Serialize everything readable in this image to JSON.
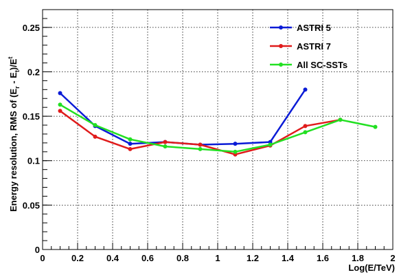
{
  "chart_data": {
    "type": "line",
    "title": "",
    "xlabel": "Log(E/TeV)",
    "ylabel": "Energy resolution, RMS of (E_r - E_t)/E_t",
    "ylabel_parts": {
      "main": "Energy resolution, RMS of (E",
      "sub1": "r",
      "mid": " - E",
      "sub2": "t",
      "close": ")/E",
      "sub3": "t"
    },
    "xlim": [
      0,
      2
    ],
    "ylim": [
      0,
      0.27
    ],
    "xticks": [
      "0",
      "0.2",
      "0.4",
      "0.6",
      "0.8",
      "1",
      "1.2",
      "1.4",
      "1.6",
      "1.8",
      "2"
    ],
    "yticks": [
      "0",
      "0.05",
      "0.1",
      "0.15",
      "0.2",
      "0.25"
    ],
    "grid": true,
    "legend_position": "top-right",
    "series": [
      {
        "name": "ASTRI 5",
        "color": "#0a1bd6",
        "x": [
          0.1,
          0.3,
          0.5,
          0.7,
          0.9,
          1.1,
          1.3,
          1.5
        ],
        "y": [
          0.176,
          0.139,
          0.119,
          0.121,
          0.118,
          0.119,
          0.121,
          0.18
        ]
      },
      {
        "name": "ASTRI 7",
        "color": "#e01b1b",
        "x": [
          0.1,
          0.3,
          0.5,
          0.7,
          0.9,
          1.1,
          1.3,
          1.5,
          1.7
        ],
        "y": [
          0.156,
          0.127,
          0.113,
          0.121,
          0.118,
          0.107,
          0.117,
          0.139,
          0.146
        ]
      },
      {
        "name": "All SC-SSTs",
        "color": "#22e022",
        "x": [
          0.1,
          0.3,
          0.5,
          0.7,
          0.9,
          1.1,
          1.3,
          1.5,
          1.7,
          1.9
        ],
        "y": [
          0.163,
          0.14,
          0.124,
          0.116,
          0.113,
          0.11,
          0.118,
          0.132,
          0.146,
          0.138
        ]
      }
    ]
  }
}
